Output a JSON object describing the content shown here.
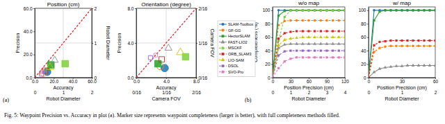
{
  "caption": "Fig. 5: Waypoint Precision vs. Accuracy in plot (a). Marker size represents waypoint completeness (larger is better), with full completeness methods filled.",
  "panel_labels": [
    "(a)",
    "(b)"
  ],
  "chart_data": [
    {
      "type": "scatter",
      "title": "Position (cm)",
      "xlabel": "Accuracy",
      "ylabel": "Precision",
      "x2label": "Robot Diameter",
      "y2label": "Robot Diameter",
      "xlim": [
        0,
        60
      ],
      "xticks": [
        {
          "value": 0,
          "label": "0.0"
        },
        {
          "value": 20,
          "label": "20.0"
        },
        {
          "value": 40,
          "label": "40.0"
        },
        {
          "value": 60,
          "label": "60.0"
        }
      ],
      "ylim": [
        0,
        60
      ],
      "yticks": [
        {
          "value": 0,
          "label": "0.0"
        },
        {
          "value": 20,
          "label": "20.0"
        },
        {
          "value": 40,
          "label": "40.0"
        },
        {
          "value": 60,
          "label": "60.0"
        }
      ],
      "x2lim": [
        0,
        2
      ],
      "x2ticks": [
        0,
        1,
        2
      ],
      "y2lim": [
        0,
        2
      ],
      "y2ticks": [
        0,
        1,
        2
      ],
      "grid": true,
      "reference_line": {
        "x": [
          0,
          60
        ],
        "values": [
          0,
          60
        ],
        "color": "#e41a1c",
        "line_style": "dashed"
      },
      "series": [
        {
          "color": "#1f77b4",
          "marker": "filled-circle",
          "x": [
            13
          ],
          "values": [
            5
          ],
          "size": [
            100
          ]
        },
        {
          "color": "#ff7f0e",
          "marker": "circle",
          "x": [
            9
          ],
          "values": [
            4
          ],
          "size": [
            85
          ]
        },
        {
          "color": "#2ca02c",
          "marker": "filled-square",
          "x": [
            17
          ],
          "values": [
            11
          ],
          "size": [
            100
          ]
        },
        {
          "color": "#8c8c8c",
          "marker": "triangle",
          "x": [
            21
          ],
          "values": [
            15
          ],
          "size": [
            50
          ]
        },
        {
          "color": "#7fd13b",
          "marker": "filled-square",
          "x": [
            32
          ],
          "values": [
            12
          ],
          "size": [
            100
          ]
        },
        {
          "color": "#d62728",
          "marker": "square",
          "x": [
            11
          ],
          "values": [
            6
          ],
          "size": [
            69
          ]
        },
        {
          "color": "#c8c800",
          "marker": "triangle",
          "x": [
            16
          ],
          "values": [
            9
          ],
          "size": [
            60
          ]
        },
        {
          "color": "#9467bd",
          "marker": "square",
          "x": [
            7
          ],
          "values": [
            3
          ],
          "size": [
            40
          ]
        },
        {
          "color": "#e377c2",
          "marker": "square",
          "x": [
            8
          ],
          "values": [
            5
          ],
          "size": [
            30
          ]
        }
      ]
    },
    {
      "type": "scatter",
      "title": "Orientation (degree)",
      "xlabel": "Accuracy",
      "ylabel": "Precision",
      "x2label": "Camera FOV",
      "y2label": "Camera FOV",
      "xlim": [
        0,
        8
      ],
      "xticks": [
        {
          "value": 0,
          "label": "0.0"
        },
        {
          "value": 4,
          "label": "4.0"
        },
        {
          "value": 8,
          "label": "8.0"
        }
      ],
      "ylim": [
        0,
        8
      ],
      "yticks": [
        {
          "value": 0,
          "label": "0.0"
        },
        {
          "value": 4,
          "label": "4.0"
        },
        {
          "value": 8,
          "label": "8.0"
        }
      ],
      "x2lim": [
        0,
        0.125
      ],
      "x2ticks": [
        {
          "value": 0,
          "label": "0/16"
        },
        {
          "value": 0.0625,
          "label": "1/16"
        },
        {
          "value": 0.125,
          "label": "2/16"
        }
      ],
      "y2lim": [
        0,
        0.125
      ],
      "y2ticks": [
        {
          "value": 0,
          "label": "0/16"
        },
        {
          "value": 0.0625,
          "label": "1/16"
        },
        {
          "value": 0.125,
          "label": "2/16"
        }
      ],
      "grid": true,
      "reference_line": {
        "x": [
          0,
          8
        ],
        "values": [
          0,
          8
        ],
        "color": "#e41a1c",
        "line_style": "dashed"
      },
      "series": [
        {
          "color": "#1f77b4",
          "marker": "filled-circle",
          "x": [
            3.8
          ],
          "values": [
            1.1
          ],
          "size": [
            100
          ]
        },
        {
          "color": "#ff7f0e",
          "marker": "circle",
          "x": [
            3.2
          ],
          "values": [
            1.3
          ],
          "size": [
            85
          ]
        },
        {
          "color": "#2ca02c",
          "marker": "filled-square",
          "x": [
            2.9
          ],
          "values": [
            1.6
          ],
          "size": [
            100
          ]
        },
        {
          "color": "#8c8c8c",
          "marker": "triangle",
          "x": [
            4.3
          ],
          "values": [
            3.4
          ],
          "size": [
            50
          ]
        },
        {
          "color": "#7fd13b",
          "marker": "filled-square",
          "x": [
            6.6
          ],
          "values": [
            2.4
          ],
          "size": [
            100
          ]
        },
        {
          "color": "#d62728",
          "marker": "square",
          "x": [
            3.4
          ],
          "values": [
            2.1
          ],
          "size": [
            69
          ]
        },
        {
          "color": "#c8c800",
          "marker": "triangle",
          "x": [
            5.9
          ],
          "values": [
            2.9
          ],
          "size": [
            60
          ]
        },
        {
          "color": "#9467bd",
          "marker": "square",
          "x": [
            1.9
          ],
          "values": [
            2.3
          ],
          "size": [
            40
          ]
        },
        {
          "color": "#e377c2",
          "marker": "square",
          "x": [
            2.6
          ],
          "values": [
            2.6
          ],
          "size": [
            30
          ]
        }
      ]
    },
    {
      "type": "line",
      "title": "w/o map",
      "xlabel": "Position Precision (cm)",
      "ylabel": "Completeness (%)",
      "x2label": "Robot Diameter",
      "xlim": [
        0,
        120
      ],
      "xticks": [
        0,
        30,
        60,
        90,
        120
      ],
      "x2lim": [
        0,
        4
      ],
      "x2ticks": [
        0,
        1,
        2,
        3,
        4
      ],
      "ylim": [
        0,
        105
      ],
      "yticks": [
        0,
        20,
        40,
        60,
        80,
        100
      ],
      "x": [
        0,
        10,
        20,
        30,
        40,
        50,
        60,
        70,
        80,
        90,
        100,
        110,
        120
      ],
      "series": [
        {
          "name": "SLAM-Toolbox",
          "color": "#1f77b4",
          "marker": "circle",
          "line_style": "solid",
          "values": [
            0,
            100,
            100,
            100,
            100,
            100,
            100,
            100,
            100,
            100,
            100,
            100,
            100
          ]
        },
        {
          "name": "GF-GG",
          "color": "#ff7f0e",
          "marker": "circle",
          "line_style": "dashed",
          "values": [
            0,
            78,
            84,
            85,
            85,
            85,
            85,
            85,
            85,
            85,
            85,
            85,
            85
          ]
        },
        {
          "name": "HectorSLAM",
          "color": "#2ca02c",
          "marker": "square",
          "line_style": "solid",
          "values": [
            0,
            92,
            99,
            100,
            100,
            100,
            100,
            100,
            100,
            100,
            100,
            100,
            100
          ]
        },
        {
          "name": "FAST-LIO2",
          "color": "#8c8c8c",
          "marker": "triangle",
          "line_style": "solid",
          "values": [
            0,
            44,
            49,
            50,
            50,
            50,
            50,
            50,
            50,
            50,
            50,
            50,
            50
          ]
        },
        {
          "name": "MSCKF",
          "color": "#7fd13b",
          "marker": "square",
          "line_style": "dashed",
          "values": [
            0,
            55,
            90,
            100,
            100,
            100,
            100,
            100,
            100,
            100,
            100,
            100,
            100
          ]
        },
        {
          "name": "ORB_SLAM3",
          "color": "#d62728",
          "marker": "square",
          "line_style": "dashed",
          "values": [
            0,
            58,
            66,
            68,
            69,
            69,
            69,
            69,
            69,
            69,
            69,
            69,
            69
          ]
        },
        {
          "name": "LIO-SAM",
          "color": "#c8c800",
          "marker": "triangle",
          "line_style": "dashed",
          "values": [
            0,
            48,
            56,
            58,
            59,
            60,
            60,
            60,
            60,
            60,
            60,
            60,
            60
          ]
        },
        {
          "name": "DSOL",
          "color": "#9467bd",
          "marker": "square",
          "line_style": "dashed",
          "values": [
            0,
            33,
            39,
            40,
            40,
            40,
            40,
            40,
            40,
            40,
            40,
            40,
            40
          ]
        },
        {
          "name": "SVO-Pro",
          "color": "#e377c2",
          "marker": "square",
          "line_style": "dashed",
          "values": [
            0,
            14,
            24,
            28,
            30,
            30,
            30,
            30,
            30,
            30,
            30,
            30,
            30
          ]
        }
      ]
    },
    {
      "type": "line",
      "title": "w/ map",
      "xlabel": "Position Precision (cm)",
      "x2label": "Robot Diameter",
      "xlim": [
        0,
        60
      ],
      "xticks": [
        0,
        30,
        60
      ],
      "x2lim": [
        0,
        2
      ],
      "x2ticks": [
        0,
        1,
        2
      ],
      "ylim": [
        0,
        105
      ],
      "yticks": [
        0,
        20,
        40,
        60,
        80,
        100
      ],
      "x": [
        0,
        5,
        10,
        15,
        20,
        25,
        30,
        35,
        40,
        45,
        50,
        55,
        60
      ],
      "series": [
        {
          "color": "#1f77b4",
          "marker": "circle",
          "line_style": "solid",
          "values": [
            0,
            100,
            100,
            100,
            100,
            100,
            100,
            100,
            100,
            100,
            100,
            100,
            100
          ]
        },
        {
          "color": "#ff7f0e",
          "marker": "circle",
          "line_style": "dashed",
          "values": [
            0,
            38,
            44,
            46,
            47,
            47,
            47,
            47,
            47,
            47,
            47,
            47,
            47
          ]
        },
        {
          "color": "#2ca02c",
          "marker": "square",
          "line_style": "solid",
          "values": [
            0,
            85,
            98,
            100,
            100,
            100,
            100,
            100,
            100,
            100,
            100,
            100,
            100
          ]
        },
        {
          "color": "#8c8c8c",
          "marker": "triangle",
          "line_style": "solid",
          "values": [
            0,
            8,
            13,
            15,
            16,
            17,
            17,
            18,
            18,
            18,
            18,
            18,
            18
          ]
        },
        {
          "color": "#d62728",
          "marker": "square",
          "line_style": "dashed",
          "values": [
            0,
            48,
            53,
            54,
            55,
            55,
            55,
            55,
            55,
            55,
            55,
            55,
            55
          ]
        }
      ]
    }
  ]
}
